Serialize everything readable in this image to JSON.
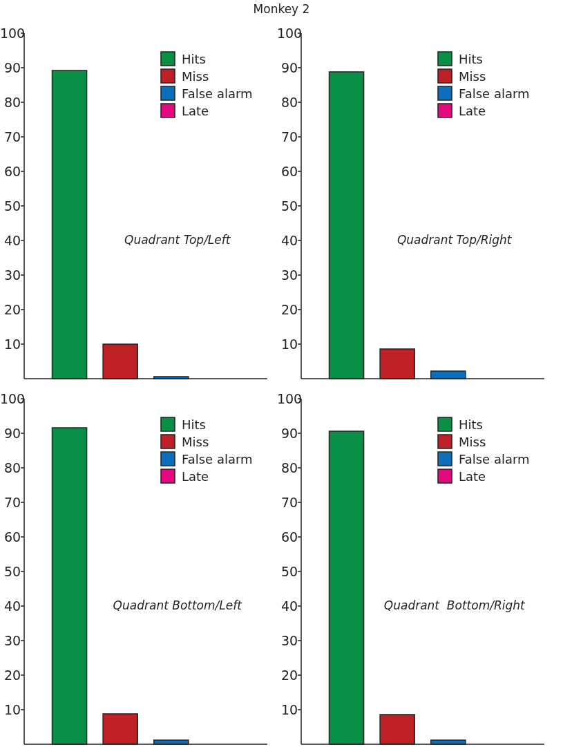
{
  "chart_data": [
    {
      "type": "other",
      "title": "Monkey 2"
    },
    {
      "type": "bar",
      "categories": [
        null
      ],
      "series": [
        {
          "name": "Hits",
          "color": "#0a8f46",
          "values": [
            89.2
          ]
        },
        {
          "name": "Miss",
          "color": "#bd2126",
          "values": [
            10
          ]
        },
        {
          "name": "False alarm",
          "color": "#0d6ebb",
          "values": [
            0.6
          ]
        },
        {
          "name": "Late",
          "color": "#e5097f",
          "values": [
            0
          ]
        }
      ],
      "ylim": [
        0,
        100
      ],
      "yticks": [
        10,
        20,
        30,
        40,
        50,
        60,
        70,
        80,
        90,
        100
      ],
      "legend": "top right",
      "annotations": [
        "Quadrant Top/Left"
      ]
    },
    {
      "type": "bar",
      "categories": [
        null
      ],
      "series": [
        {
          "name": "Hits",
          "color": "#0a8f46",
          "values": [
            88.8
          ]
        },
        {
          "name": "Miss",
          "color": "#bd2126",
          "values": [
            8.6
          ]
        },
        {
          "name": "False alarm",
          "color": "#0d6ebb",
          "values": [
            2.2
          ]
        },
        {
          "name": "Late",
          "color": "#e5097f",
          "values": [
            0
          ]
        }
      ],
      "ylim": [
        0,
        100
      ],
      "yticks": [
        10,
        20,
        30,
        40,
        50,
        60,
        70,
        80,
        90,
        100
      ],
      "legend": "top right",
      "annotations": [
        "Quadrant Top/Right"
      ]
    },
    {
      "type": "bar",
      "categories": [
        null
      ],
      "series": [
        {
          "name": "Hits",
          "color": "#0a8f46",
          "values": [
            91.6
          ]
        },
        {
          "name": "Miss",
          "color": "#bd2126",
          "values": [
            8.8
          ]
        },
        {
          "name": "False alarm",
          "color": "#0d6ebb",
          "values": [
            1.2
          ]
        },
        {
          "name": "Late",
          "color": "#e5097f",
          "values": [
            0
          ]
        }
      ],
      "ylim": [
        0,
        100
      ],
      "yticks": [
        10,
        20,
        30,
        40,
        50,
        60,
        70,
        80,
        90,
        100
      ],
      "legend": "top right",
      "annotations": [
        "Quadrant Bottom/Left"
      ]
    },
    {
      "type": "bar",
      "categories": [
        null
      ],
      "series": [
        {
          "name": "Hits",
          "color": "#0a8f46",
          "values": [
            90.6
          ]
        },
        {
          "name": "Miss",
          "color": "#bd2126",
          "values": [
            8.6
          ]
        },
        {
          "name": "False alarm",
          "color": "#0d6ebb",
          "values": [
            1.2
          ]
        },
        {
          "name": "Late",
          "color": "#e5097f",
          "values": [
            0
          ]
        }
      ],
      "ylim": [
        0,
        100
      ],
      "yticks": [
        10,
        20,
        30,
        40,
        50,
        60,
        70,
        80,
        90,
        100
      ],
      "legend": "top right",
      "annotations": [
        "Quadrant  Bottom/Right"
      ]
    }
  ]
}
